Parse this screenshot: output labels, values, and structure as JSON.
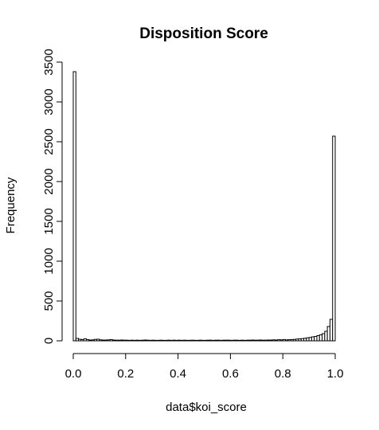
{
  "chart_data": {
    "type": "bar",
    "title": "Disposition Score",
    "xlabel": "data$koi_score",
    "ylabel": "Frequency",
    "bin_width": 0.01,
    "xlim": [
      0,
      1
    ],
    "ylim": [
      0,
      3500
    ],
    "x_ticks": [
      "0.0",
      "0.2",
      "0.4",
      "0.6",
      "0.8",
      "1.0"
    ],
    "y_ticks": [
      "0",
      "500",
      "1000",
      "1500",
      "2000",
      "2500",
      "3000",
      "3500"
    ],
    "grid": false,
    "legend": "none",
    "bin_starts": [
      0.0,
      0.01,
      0.02,
      0.03,
      0.04,
      0.05,
      0.06,
      0.07,
      0.08,
      0.09,
      0.1,
      0.11,
      0.12,
      0.13,
      0.14,
      0.15,
      0.16,
      0.17,
      0.18,
      0.19,
      0.2,
      0.21,
      0.22,
      0.23,
      0.24,
      0.25,
      0.26,
      0.27,
      0.28,
      0.29,
      0.3,
      0.31,
      0.32,
      0.33,
      0.34,
      0.35,
      0.36,
      0.37,
      0.38,
      0.39,
      0.4,
      0.41,
      0.42,
      0.43,
      0.44,
      0.45,
      0.46,
      0.47,
      0.48,
      0.49,
      0.5,
      0.51,
      0.52,
      0.53,
      0.54,
      0.55,
      0.56,
      0.57,
      0.58,
      0.59,
      0.6,
      0.61,
      0.62,
      0.63,
      0.64,
      0.65,
      0.66,
      0.67,
      0.68,
      0.69,
      0.7,
      0.71,
      0.72,
      0.73,
      0.74,
      0.75,
      0.76,
      0.77,
      0.78,
      0.79,
      0.8,
      0.81,
      0.82,
      0.83,
      0.84,
      0.85,
      0.86,
      0.87,
      0.88,
      0.89,
      0.9,
      0.91,
      0.92,
      0.93,
      0.94,
      0.95,
      0.96,
      0.97,
      0.98,
      0.99
    ],
    "values": [
      3380,
      30,
      20,
      15,
      25,
      15,
      10,
      12,
      18,
      20,
      12,
      10,
      10,
      12,
      15,
      10,
      8,
      8,
      10,
      8,
      8,
      6,
      8,
      6,
      8,
      6,
      8,
      10,
      8,
      6,
      8,
      6,
      6,
      8,
      6,
      6,
      8,
      6,
      8,
      6,
      8,
      6,
      8,
      6,
      6,
      8,
      6,
      6,
      8,
      6,
      6,
      8,
      8,
      6,
      8,
      8,
      6,
      8,
      8,
      8,
      6,
      8,
      8,
      6,
      8,
      6,
      8,
      8,
      10,
      8,
      8,
      10,
      8,
      8,
      10,
      10,
      12,
      10,
      14,
      12,
      16,
      12,
      14,
      16,
      18,
      22,
      25,
      28,
      32,
      38,
      42,
      50,
      55,
      65,
      75,
      90,
      120,
      180,
      270,
      2570
    ]
  },
  "colors": {
    "bar_fill": "#ffffff",
    "bar_stroke": "#000000"
  }
}
